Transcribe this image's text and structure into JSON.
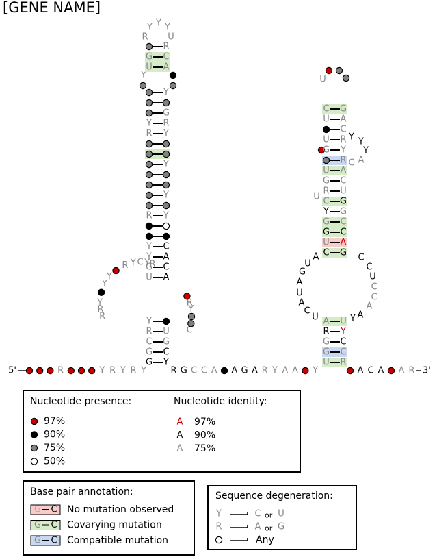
{
  "title": "[GENE NAME]",
  "colors": {
    "red": "#cc0000",
    "black": "#000000",
    "gray": "#808080",
    "strongText": "#000000",
    "weakText": "#888888",
    "covary": "#d6ecc8",
    "compatible": "#c8d8f2",
    "nomut": "#f6cccc",
    "pairLine": "#000000"
  },
  "backbone": {
    "left": "5'",
    "right": "3'",
    "leftSeq": [
      "•r",
      "•r",
      "•r",
      "R",
      "•r",
      "•r",
      "•r",
      "Y",
      "R",
      "Y",
      "R",
      "Y"
    ],
    "midSeq": [
      "R",
      "G",
      "C",
      "C",
      "A",
      "•b",
      "A",
      "G",
      "A",
      "R",
      "Y",
      "A",
      "A",
      "•r",
      "Y"
    ],
    "rightSeq": [
      "•r",
      "A",
      "C",
      "A",
      "•r",
      "A",
      "R"
    ]
  },
  "stem1": {
    "pairs": [
      [
        "G",
        "Y",
        "k",
        "k"
      ],
      [
        "G",
        "C",
        "g",
        "k"
      ],
      [
        "C",
        "G",
        "g",
        "g"
      ],
      [
        "R",
        "U",
        "g",
        "g"
      ],
      [
        "Y",
        "•b",
        "g",
        "k"
      ]
    ],
    "internalLoopLeft": [
      "R",
      "R",
      "Y",
      "•b",
      "Y",
      "Y",
      "•r",
      "R",
      "Y",
      "C",
      "Y",
      "R"
    ],
    "internalLoopRight": [
      "C",
      "•g",
      "•g",
      "Y",
      "R",
      "•r"
    ],
    "upperPairs": [
      [
        "U",
        "A",
        "g",
        "k"
      ],
      [
        "G",
        "C",
        "g",
        "k"
      ],
      [
        "Y",
        "A",
        "g",
        "k"
      ],
      [
        "Y",
        "C",
        "g",
        "k"
      ]
    ],
    "stemPairs": [
      [
        "•b",
        "•b",
        "",
        ""
      ],
      [
        "•b",
        "○",
        "",
        ""
      ],
      [
        "R",
        "Y",
        "g",
        "g"
      ],
      [
        "•g",
        "•g",
        "",
        ""
      ],
      [
        "•g",
        "Y",
        "",
        "g"
      ],
      [
        "•g",
        "•g",
        "",
        ""
      ],
      [
        "•g",
        "•g",
        "",
        ""
      ],
      [
        "•g",
        "Y",
        "",
        "g"
      ],
      [
        "•g",
        "•g",
        "c",
        ""
      ],
      [
        "•g",
        "•g",
        "",
        ""
      ],
      [
        "R",
        "Y",
        "g",
        "g"
      ],
      [
        "Y",
        "R",
        "g",
        "g"
      ],
      [
        "•g",
        "G",
        "",
        "g"
      ],
      [
        "•g",
        "•g",
        "",
        ""
      ],
      [
        "•g",
        "Y",
        "",
        "g"
      ]
    ],
    "bulgeLeft": [
      "•g",
      "Y"
    ],
    "bulgeRight": [
      "•g",
      "•b"
    ],
    "topPairs": [
      [
        "U",
        "A",
        "g",
        "g"
      ],
      [
        "G",
        "C",
        "g",
        "g"
      ],
      [
        "•g",
        "R",
        "",
        "g"
      ]
    ],
    "hairpin": [
      "R",
      "Y",
      "Y",
      "Y",
      "U"
    ]
  },
  "stem2": {
    "pairs": [
      [
        "U",
        "R",
        "g",
        "g"
      ],
      [
        "G",
        "C",
        "g",
        "g"
      ],
      [
        "G",
        "C",
        "g",
        "k"
      ],
      [
        "R",
        "Y",
        "k",
        "r"
      ],
      [
        "A",
        "U",
        "g",
        "g"
      ]
    ],
    "loopLeft": [
      "U",
      "C",
      "A",
      "U",
      "A",
      "G",
      "U",
      "A"
    ],
    "loopRight": [
      "Y",
      "A",
      "A",
      "C",
      "C",
      "U",
      "C",
      "C"
    ],
    "upperPairs": [
      [
        "C",
        "G",
        "k",
        "k"
      ],
      [
        "U",
        "A",
        "g",
        "r"
      ],
      [
        "G",
        "C",
        "k",
        "k"
      ],
      [
        "G",
        "C",
        "g",
        "g"
      ],
      [
        "Y",
        "G",
        "k",
        "g"
      ],
      [
        "C",
        "G",
        "g",
        "k"
      ],
      [
        "R",
        "U",
        "g",
        "g"
      ],
      [
        "G",
        "C",
        "g",
        "g"
      ],
      [
        "U",
        "A",
        "g",
        "g"
      ],
      [
        "G",
        "C",
        "g",
        "g"
      ]
    ],
    "bulgeLeft": [
      "U"
    ],
    "sideLoopRight": [
      "C",
      "A",
      "Y",
      "Y",
      "Y"
    ],
    "redBeforeSide": "•r",
    "topPairs": [
      [
        "•g",
        "R",
        "",
        "g"
      ],
      [
        "G",
        "Y",
        "g",
        "g"
      ],
      [
        "U",
        "R",
        "g",
        "g"
      ],
      [
        "•b",
        "C",
        "",
        "g"
      ],
      [
        "U",
        "A",
        "g",
        "g"
      ],
      [
        "C",
        "G",
        "g",
        "g"
      ]
    ],
    "hairpin": [
      "U",
      "•r",
      "•g",
      "•g"
    ]
  },
  "legend": {
    "presence": {
      "title": "Nucleotide presence:",
      "items": [
        {
          "label": "97%",
          "symbol": "red"
        },
        {
          "label": "90%",
          "symbol": "black"
        },
        {
          "label": "75%",
          "symbol": "gray"
        },
        {
          "label": "50%",
          "symbol": "open"
        }
      ]
    },
    "identity": {
      "title": "Nucleotide identity:",
      "items": [
        {
          "glyph": "A",
          "label": "97%",
          "color": "red"
        },
        {
          "glyph": "A",
          "label": "90%",
          "color": "black"
        },
        {
          "glyph": "A",
          "label": "75%",
          "color": "gray"
        }
      ]
    },
    "basepair": {
      "title": "Base pair annotation:",
      "items": [
        {
          "left": "G",
          "right": "C",
          "label": "No mutation observed",
          "type": "nomut"
        },
        {
          "left": "G",
          "right": "C",
          "label": "Covarying mutation",
          "type": "covary"
        },
        {
          "left": "G",
          "right": "C",
          "label": "Compatible mutation",
          "type": "compatible"
        }
      ]
    },
    "degeneration": {
      "title": "Sequence degeneration:",
      "items": [
        {
          "symbol": "Y",
          "a": "C",
          "or": "or",
          "b": "U"
        },
        {
          "symbol": "R",
          "a": "A",
          "or": "or",
          "b": "G"
        },
        {
          "symbol": "○",
          "a": "Any",
          "or": "",
          "b": ""
        }
      ]
    }
  }
}
